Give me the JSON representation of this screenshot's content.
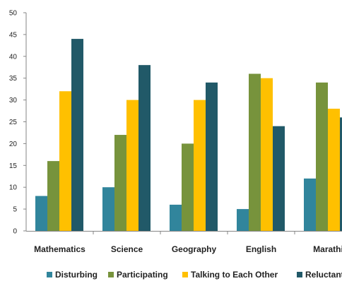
{
  "chart_data": {
    "type": "bar",
    "categories": [
      "Mathematics",
      "Science",
      "Geography",
      "English",
      "Marathi"
    ],
    "series": [
      {
        "name": "Disturbing",
        "values": [
          8,
          10,
          6,
          5,
          12
        ],
        "color": "#31859C"
      },
      {
        "name": "Participating",
        "values": [
          16,
          22,
          20,
          36,
          34
        ],
        "color": "#77933C"
      },
      {
        "name": "Talking to Each Other",
        "values": [
          32,
          30,
          30,
          35,
          28
        ],
        "color": "#FFC000"
      },
      {
        "name": "Reluctant",
        "values": [
          44,
          38,
          34,
          24,
          26
        ],
        "color": "#215968"
      }
    ],
    "yticks": [
      "0",
      "5",
      "10",
      "15",
      "20",
      "25",
      "30",
      "35",
      "40",
      "45",
      "50"
    ],
    "ylim": [
      0,
      50
    ],
    "grid": false,
    "legend_position": "bottom"
  }
}
